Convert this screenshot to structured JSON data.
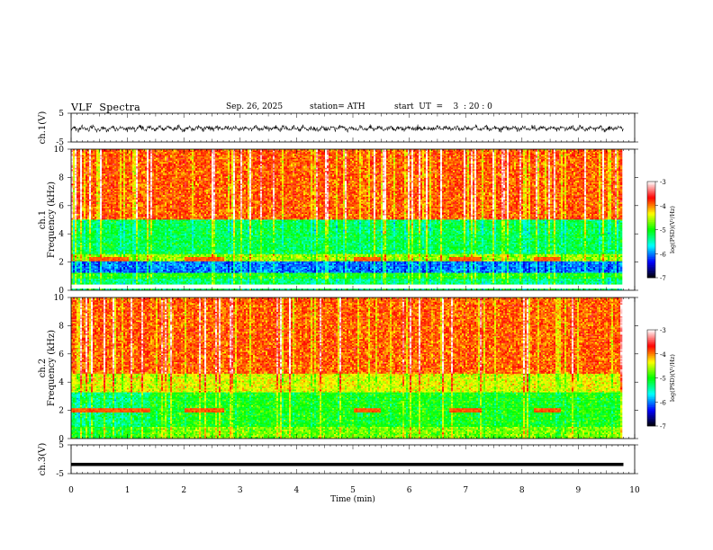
{
  "header": {
    "title": "VLF  Spectra",
    "date": "Sep. 26, 2025",
    "station": "station= ATH",
    "start_ut": "start  UT  =    3  : 20 : 0"
  },
  "chart_data": [
    {
      "type": "line",
      "panel": "ch1-waveform",
      "ylabel": "ch.1(V)",
      "yticks": [
        "5",
        "-5"
      ],
      "ylim": [
        -5,
        5
      ],
      "xlim": [
        0,
        10
      ],
      "trace_span_min": [
        0,
        9.8
      ],
      "amplitude_range_V": [
        -2,
        2
      ]
    },
    {
      "type": "heatmap",
      "panel": "ch1-spectrogram",
      "ylabel_channel": "ch.1",
      "ylabel": "Frequency  (kHz)",
      "yticks": [
        "0",
        "2",
        "4",
        "6",
        "8",
        "10"
      ],
      "ylim": [
        0,
        10
      ],
      "xlim": [
        0,
        10
      ],
      "data_span_min": [
        0,
        9.8
      ],
      "color_scale": {
        "label": "log(PSD)(V²/Hz)",
        "ticks": [
          "-3",
          "-4",
          "-5",
          "-6",
          "-7"
        ],
        "range": [
          -7,
          -3
        ],
        "colors": [
          "#000000",
          "#0000ff",
          "#00ffff",
          "#00ff00",
          "#ffff00",
          "#ff0000",
          "#ffffff"
        ]
      },
      "bands": [
        {
          "f_kHz": [
            0,
            0.8
          ],
          "log_psd": -5.3
        },
        {
          "f_kHz": [
            0.8,
            1.2
          ],
          "log_psd": -5.0
        },
        {
          "f_kHz": [
            1.2,
            2.0
          ],
          "log_psd": -6.0
        },
        {
          "f_kHz": [
            2.0,
            2.6
          ],
          "log_psd": -4.6
        },
        {
          "f_kHz": [
            2.6,
            5.0
          ],
          "log_psd": -5.2
        },
        {
          "f_kHz": [
            5.0,
            10.0
          ],
          "log_psd": -3.9
        }
      ],
      "gap_kHz": [
        0.1,
        0.4
      ],
      "features": [
        {
          "t_min": [
            0.3,
            1.0
          ],
          "f_kHz": 2.2,
          "log_psd": -3.9
        },
        {
          "t_min": [
            2.0,
            2.7
          ],
          "f_kHz": 2.2,
          "log_psd": -3.9
        },
        {
          "t_min": [
            5.0,
            5.5
          ],
          "f_kHz": 2.2,
          "log_psd": -3.9
        },
        {
          "t_min": [
            6.7,
            7.3
          ],
          "f_kHz": 2.2,
          "log_psd": -3.9
        },
        {
          "t_min": [
            8.2,
            8.7
          ],
          "f_kHz": 2.2,
          "log_psd": -3.9
        }
      ]
    },
    {
      "type": "heatmap",
      "panel": "ch2-spectrogram",
      "ylabel_channel": "ch.2",
      "ylabel": "Frequency  (kHz)",
      "yticks": [
        "0",
        "2",
        "4",
        "6",
        "8",
        "10"
      ],
      "ylim": [
        0,
        10
      ],
      "xlim": [
        0,
        10
      ],
      "data_span_min": [
        0,
        9.8
      ],
      "color_scale": {
        "label": "log(PSD)(V²/Hz)",
        "ticks": [
          "-3",
          "-4",
          "-5",
          "-6",
          "-7"
        ],
        "range": [
          -7,
          -3
        ],
        "colors": [
          "#000000",
          "#0000ff",
          "#00ffff",
          "#00ff00",
          "#ffff00",
          "#ff0000",
          "#ffffff"
        ]
      },
      "bands": [
        {
          "f_kHz": [
            0,
            0.8
          ],
          "log_psd": -4.7
        },
        {
          "f_kHz": [
            0.8,
            3.3
          ],
          "log_psd": -5.0
        },
        {
          "f_kHz": [
            3.3,
            4.6
          ],
          "log_psd": -4.4
        },
        {
          "f_kHz": [
            4.6,
            10.0
          ],
          "log_psd": -3.9
        }
      ],
      "features": [
        {
          "t_min": [
            0,
            1.4
          ],
          "f_kHz": 2.0,
          "log_psd": -3.9
        },
        {
          "t_min": [
            2.0,
            2.7
          ],
          "f_kHz": 2.0,
          "log_psd": -3.9
        },
        {
          "t_min": [
            5.0,
            5.5
          ],
          "f_kHz": 2.0,
          "log_psd": -3.9
        },
        {
          "t_min": [
            6.7,
            7.3
          ],
          "f_kHz": 2.0,
          "log_psd": -3.9
        },
        {
          "t_min": [
            8.2,
            8.7
          ],
          "f_kHz": 2.0,
          "log_psd": -3.9
        }
      ]
    },
    {
      "type": "line",
      "panel": "ch3-waveform",
      "ylabel": "ch.3(V)",
      "yticks": [
        "5",
        "-5"
      ],
      "ylim": [
        -5,
        5
      ],
      "xlim": [
        0,
        10
      ],
      "trace_span_min": [
        0,
        9.8
      ],
      "level_V": -1.8,
      "xlabel": "Time  (min)",
      "xticks": [
        "0",
        "1",
        "2",
        "3",
        "4",
        "5",
        "6",
        "7",
        "8",
        "9",
        "10"
      ]
    }
  ]
}
